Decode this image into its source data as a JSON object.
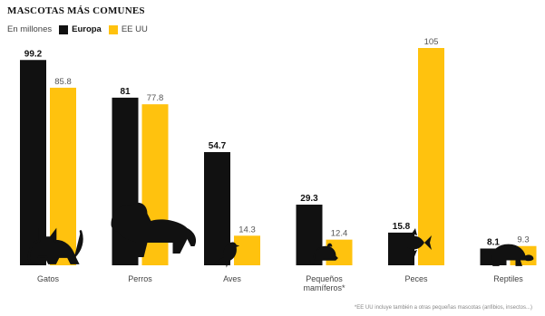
{
  "title": "MASCOTAS MÁS COMUNES",
  "units_note": "En millones",
  "footnote": "*EE UU incluye también a otras pequeñas mascotas (anfibios, insectos...)",
  "colors": {
    "europa": "#111111",
    "eeuu": "#FFC20E"
  },
  "chart_data": {
    "type": "bar",
    "title": "MASCOTAS MÁS COMUNES",
    "ylabel": "En millones",
    "categories": [
      "Gatos",
      "Perros",
      "Aves",
      "Pequeños mamíferos*",
      "Peces",
      "Reptiles"
    ],
    "series": [
      {
        "name": "Europa",
        "values": [
          99.2,
          81,
          54.7,
          29.3,
          15.8,
          8.1
        ]
      },
      {
        "name": "EE UU",
        "values": [
          85.8,
          77.8,
          14.3,
          12.4,
          105,
          9.3
        ]
      }
    ],
    "ylim": [
      0,
      105
    ],
    "grid": false,
    "legend": "top-left",
    "icons": [
      "cat-icon",
      "dog-icon",
      "bird-icon",
      "mouse-icon",
      "fish-icon",
      "turtle-icon"
    ]
  }
}
